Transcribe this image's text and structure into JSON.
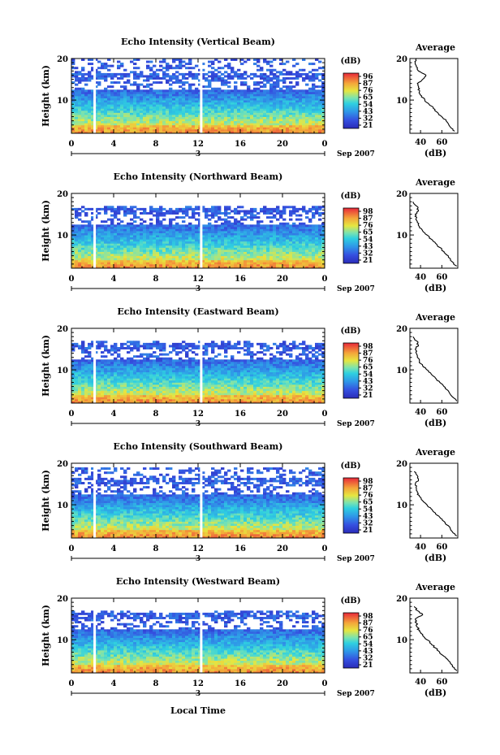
{
  "figure": {
    "common": {
      "ylabel": "Height (km)",
      "y_ticks": [
        "20",
        "10"
      ],
      "x_ticks": [
        "0",
        "4",
        "8",
        "12",
        "16",
        "20",
        "0"
      ],
      "date_day": "3",
      "date_month_year": "Sep 2007",
      "colorbar_unit": "(dB)",
      "avg_title": "Average",
      "avg_xlabel": "(dB)",
      "xlabel_bottom": "Local Time"
    }
  },
  "chart_data": [
    {
      "type": "heatmap",
      "title": "Echo Intensity (Vertical Beam)",
      "ylabel": "Height (km)",
      "xlabel": "",
      "ylim": [
        2,
        20
      ],
      "xlim": [
        0,
        24
      ],
      "colorbar": {
        "unit": "(dB)",
        "ticks": [
          "96",
          "87",
          "76",
          "65",
          "54",
          "43",
          "32",
          "21"
        ]
      },
      "data_gaps_hours": [
        2.2,
        12.3
      ],
      "echo_top_km": 20,
      "average_profile": {
        "title": "Average",
        "xlabel": "(dB)",
        "x_ticks": [
          "40",
          "60"
        ],
        "xlim": [
          30,
          75
        ],
        "ylim": [
          2,
          20
        ],
        "points": [
          [
            72,
            2.5
          ],
          [
            68,
            3.5
          ],
          [
            64,
            5
          ],
          [
            60,
            6
          ],
          [
            56,
            7
          ],
          [
            52,
            8
          ],
          [
            48,
            9
          ],
          [
            44,
            10
          ],
          [
            41,
            11
          ],
          [
            39,
            12
          ],
          [
            38,
            13
          ],
          [
            37,
            14
          ],
          [
            42,
            15
          ],
          [
            45,
            16
          ],
          [
            38,
            17
          ],
          [
            36,
            18
          ],
          [
            35,
            19
          ],
          [
            36,
            20
          ]
        ]
      }
    },
    {
      "type": "heatmap",
      "title": "Echo Intensity (Northward Beam)",
      "ylabel": "Height (km)",
      "xlabel": "",
      "ylim": [
        2,
        20
      ],
      "xlim": [
        0,
        24
      ],
      "colorbar": {
        "unit": "(dB)",
        "ticks": [
          "98",
          "87",
          "76",
          "65",
          "54",
          "43",
          "32",
          "21"
        ]
      },
      "data_gaps_hours": [
        2.2,
        12.3
      ],
      "echo_top_km": 17,
      "average_profile": {
        "title": "Average",
        "xlabel": "(dB)",
        "x_ticks": [
          "40",
          "60"
        ],
        "xlim": [
          30,
          75
        ],
        "ylim": [
          2,
          20
        ],
        "points": [
          [
            74,
            2.5
          ],
          [
            70,
            3.5
          ],
          [
            66,
            5
          ],
          [
            62,
            6
          ],
          [
            58,
            7
          ],
          [
            54,
            8
          ],
          [
            50,
            9
          ],
          [
            46,
            10
          ],
          [
            42,
            11
          ],
          [
            39,
            12
          ],
          [
            37,
            13
          ],
          [
            36,
            14
          ],
          [
            35,
            15
          ],
          [
            38,
            16
          ],
          [
            36,
            17
          ],
          [
            33,
            18
          ]
        ]
      }
    },
    {
      "type": "heatmap",
      "title": "Echo Intensity (Eastward Beam)",
      "ylabel": "Height (km)",
      "xlabel": "",
      "ylim": [
        2,
        20
      ],
      "xlim": [
        0,
        24
      ],
      "colorbar": {
        "unit": "(dB)",
        "ticks": [
          "98",
          "87",
          "76",
          "65",
          "54",
          "43",
          "32",
          "21"
        ]
      },
      "data_gaps_hours": [
        2.2,
        12.3
      ],
      "echo_top_km": 17,
      "average_profile": {
        "title": "Average",
        "xlabel": "(dB)",
        "x_ticks": [
          "40",
          "60"
        ],
        "xlim": [
          30,
          75
        ],
        "ylim": [
          2,
          20
        ],
        "points": [
          [
            74,
            2.5
          ],
          [
            70,
            3.5
          ],
          [
            66,
            5
          ],
          [
            62,
            6
          ],
          [
            58,
            7
          ],
          [
            54,
            8
          ],
          [
            50,
            9
          ],
          [
            46,
            10
          ],
          [
            42,
            11
          ],
          [
            39,
            12
          ],
          [
            37,
            13
          ],
          [
            36,
            14
          ],
          [
            35,
            15
          ],
          [
            38,
            16
          ],
          [
            36,
            17
          ],
          [
            33,
            18
          ]
        ]
      }
    },
    {
      "type": "heatmap",
      "title": "Echo Intensity (Southward Beam)",
      "ylabel": "Height (km)",
      "xlabel": "",
      "ylim": [
        2,
        20
      ],
      "xlim": [
        0,
        24
      ],
      "colorbar": {
        "unit": "(dB)",
        "ticks": [
          "98",
          "87",
          "76",
          "65",
          "54",
          "43",
          "32",
          "21"
        ]
      },
      "data_gaps_hours": [
        2.2,
        12.3
      ],
      "echo_top_km": 19,
      "average_profile": {
        "title": "Average",
        "xlabel": "(dB)",
        "x_ticks": [
          "40",
          "60"
        ],
        "xlim": [
          30,
          75
        ],
        "ylim": [
          2,
          20
        ],
        "points": [
          [
            74,
            2.5
          ],
          [
            70,
            3.5
          ],
          [
            66,
            5
          ],
          [
            62,
            6
          ],
          [
            58,
            7
          ],
          [
            54,
            8
          ],
          [
            50,
            9
          ],
          [
            46,
            10
          ],
          [
            42,
            11
          ],
          [
            39,
            12
          ],
          [
            37,
            13
          ],
          [
            36,
            14
          ],
          [
            35,
            15
          ],
          [
            38,
            16
          ],
          [
            37,
            17
          ],
          [
            34,
            18
          ]
        ]
      }
    },
    {
      "type": "heatmap",
      "title": "Echo Intensity (Westward Beam)",
      "ylabel": "Height (km)",
      "xlabel": "Local Time",
      "ylim": [
        2,
        20
      ],
      "xlim": [
        0,
        24
      ],
      "colorbar": {
        "unit": "(dB)",
        "ticks": [
          "98",
          "87",
          "76",
          "65",
          "54",
          "43",
          "32",
          "21"
        ]
      },
      "data_gaps_hours": [
        2.2,
        12.3
      ],
      "echo_top_km": 17,
      "average_profile": {
        "title": "Average",
        "xlabel": "(dB)",
        "x_ticks": [
          "40",
          "60"
        ],
        "xlim": [
          30,
          75
        ],
        "ylim": [
          2,
          20
        ],
        "points": [
          [
            74,
            2.5
          ],
          [
            70,
            3.5
          ],
          [
            66,
            5
          ],
          [
            62,
            6
          ],
          [
            58,
            7
          ],
          [
            54,
            8
          ],
          [
            50,
            9
          ],
          [
            46,
            10
          ],
          [
            42,
            11
          ],
          [
            39,
            12
          ],
          [
            37,
            13
          ],
          [
            36,
            14
          ],
          [
            35,
            15
          ],
          [
            42,
            16
          ],
          [
            37,
            17
          ],
          [
            34,
            18
          ]
        ]
      }
    }
  ]
}
